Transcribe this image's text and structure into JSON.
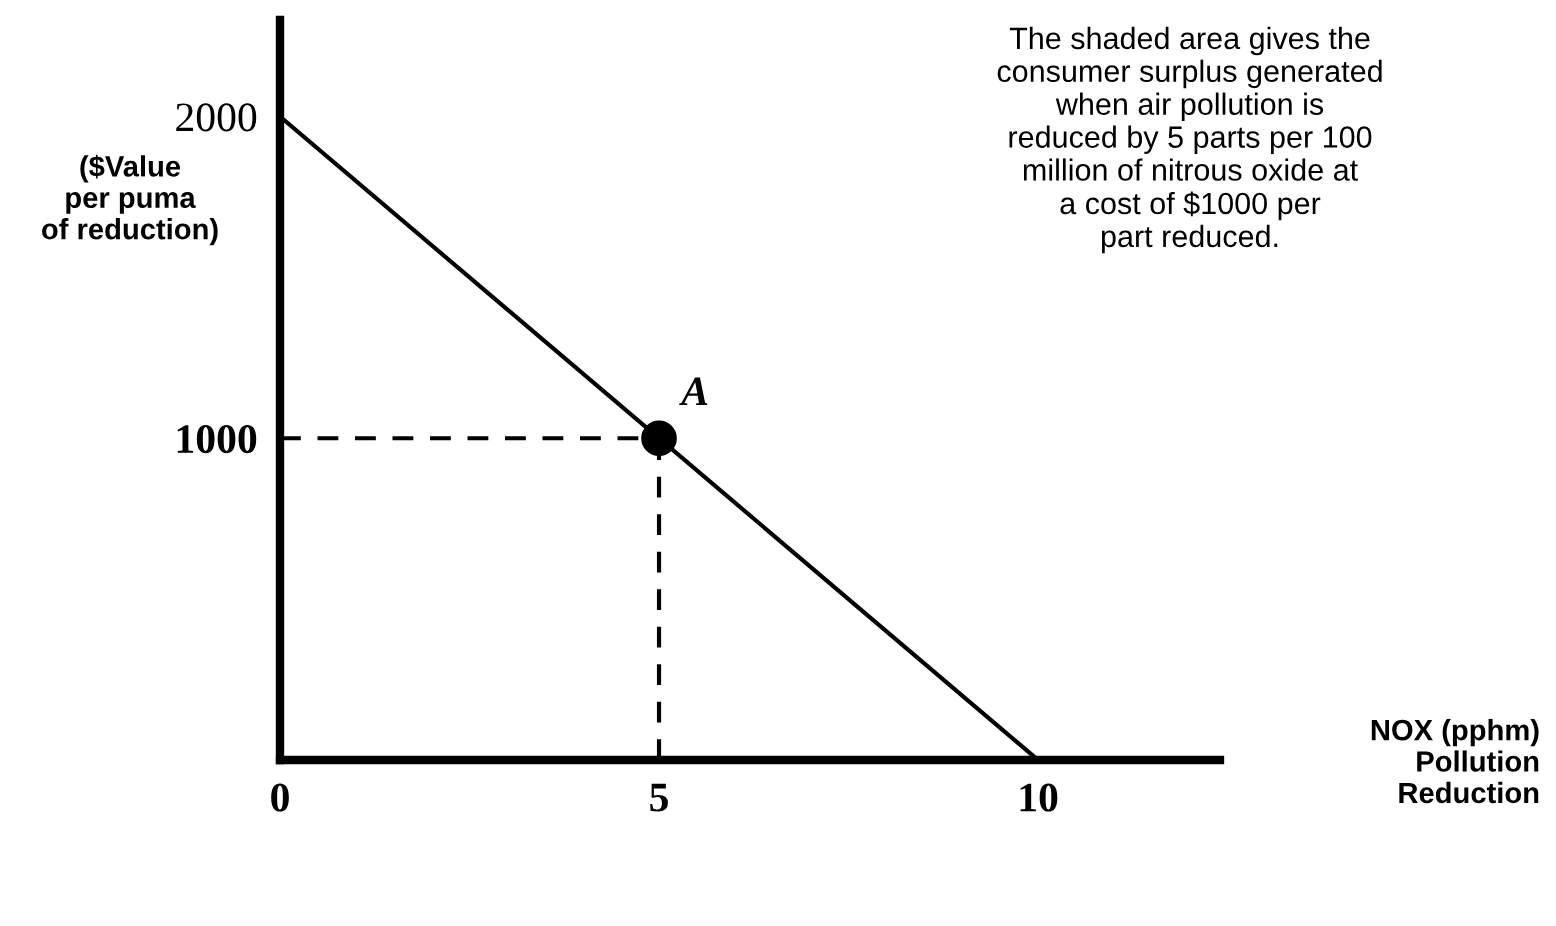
{
  "chart_data": {
    "type": "line",
    "ylabel": "($Value\nper puma\nof reduction)",
    "annotations": [
      "NOX (pphm)\nPollution\nReduction",
      "The shaded area gives the\nconsumer surplus generated\nwhen air pollution is\nreduced by 5 parts per 100\nmillion of nitrous oxide at\na cost of $1000 per\npart reduced.",
      {
        "text": "A",
        "x": 5,
        "y": 1000
      }
    ],
    "xlim": [
      0,
      12.4
    ],
    "ylim": [
      0,
      2300
    ],
    "xticks": [
      0,
      5,
      10
    ],
    "yticks": [
      1000,
      2000
    ],
    "grid": false,
    "series": [
      {
        "x": [
          0,
          10
        ],
        "values": [
          2000,
          0
        ],
        "color": "#000000",
        "line_style": "solid"
      },
      {
        "x": [
          0,
          5
        ],
        "values": [
          1000,
          1000
        ],
        "color": "#000000",
        "line_style": "dashed"
      },
      {
        "x": [
          5,
          5
        ],
        "values": [
          0,
          1000
        ],
        "color": "#000000",
        "line_style": "dashed"
      },
      {
        "type": "scatter",
        "x": [
          5
        ],
        "values": [
          1000
        ],
        "color": "#000000",
        "marker": "circle"
      }
    ]
  }
}
